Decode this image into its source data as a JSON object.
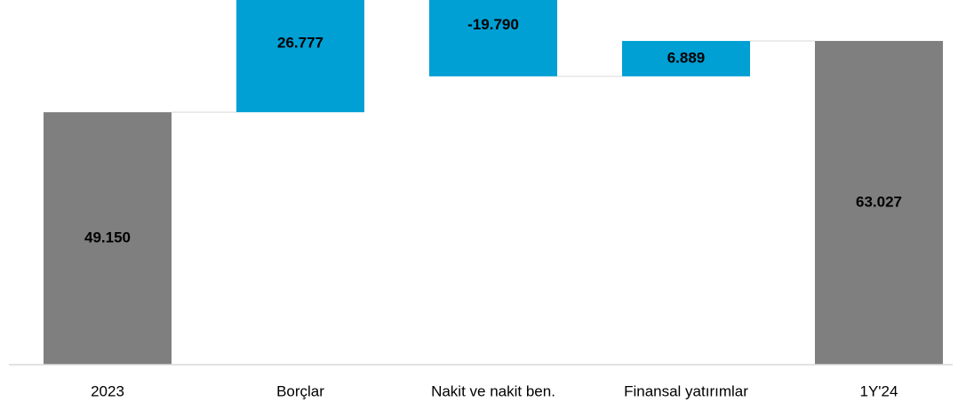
{
  "chart_data": {
    "type": "waterfall",
    "categories": [
      "2023",
      "Borçlar",
      "Nakit ve nakit ben.",
      "Finansal yatırımlar",
      "1Y'24"
    ],
    "values": [
      49150,
      26777,
      -19790,
      6889,
      63027
    ],
    "value_labels": [
      "49.150",
      "26.777",
      "-19.790",
      "6.889",
      "63.027"
    ],
    "measure": [
      "total",
      "relative",
      "relative",
      "relative",
      "total"
    ],
    "colors": [
      "#7f7f7f",
      "#009fd4",
      "#009fd4",
      "#009fd4",
      "#7f7f7f"
    ],
    "ylim": [
      0,
      71000
    ]
  }
}
